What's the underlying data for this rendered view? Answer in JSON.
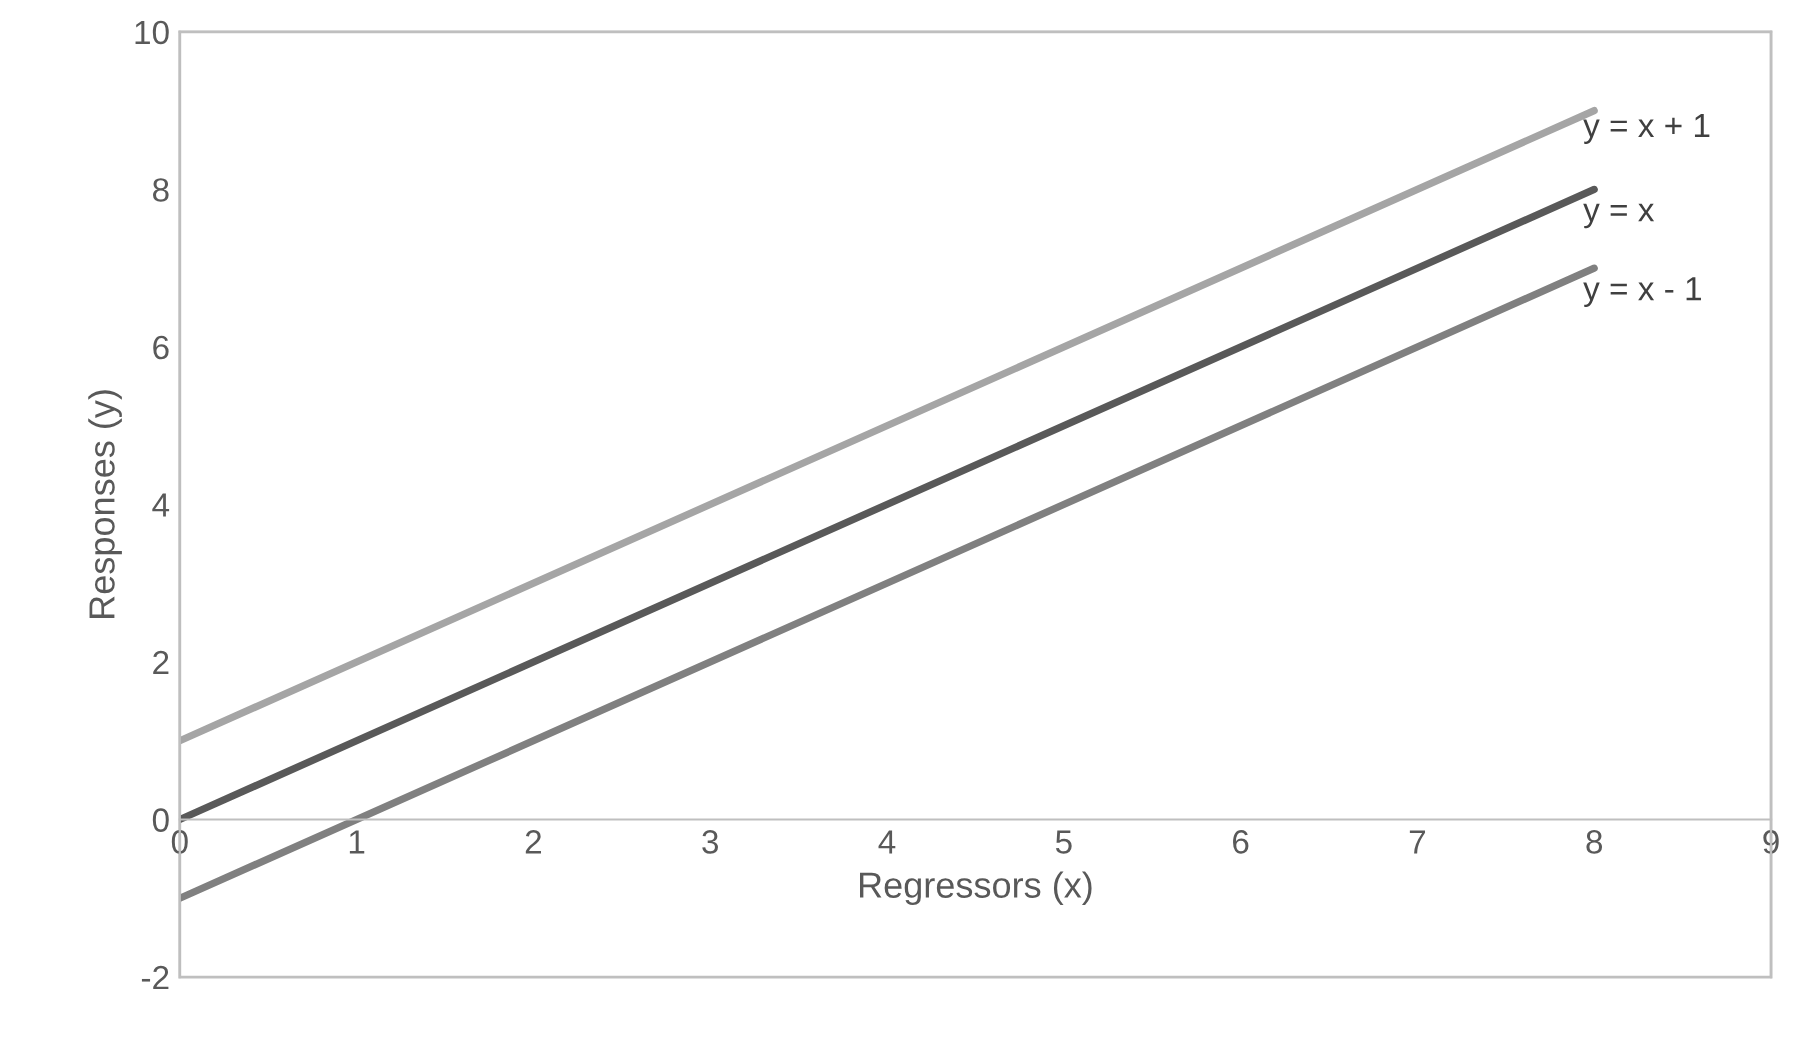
{
  "chart_data": {
    "type": "line",
    "xlabel": "Regressors (x)",
    "ylabel": "Responses (y)",
    "x": [
      0,
      8
    ],
    "series": [
      {
        "name": "y = x + 1",
        "color": "#a5a5a5",
        "values": [
          1,
          9
        ]
      },
      {
        "name": "y = x",
        "color": "#595959",
        "values": [
          0,
          8
        ]
      },
      {
        "name": "y = x - 1",
        "color": "#808080",
        "values": [
          -1,
          7
        ]
      }
    ],
    "xlim": [
      0,
      9
    ],
    "xticks": [
      0,
      1,
      2,
      3,
      4,
      5,
      6,
      7,
      8,
      9
    ],
    "ylim": [
      -2,
      10
    ],
    "yticks": [
      -2,
      0,
      2,
      4,
      6,
      8,
      10
    ],
    "grid": false,
    "legend": false,
    "marker": "none",
    "line_style": "solid"
  }
}
